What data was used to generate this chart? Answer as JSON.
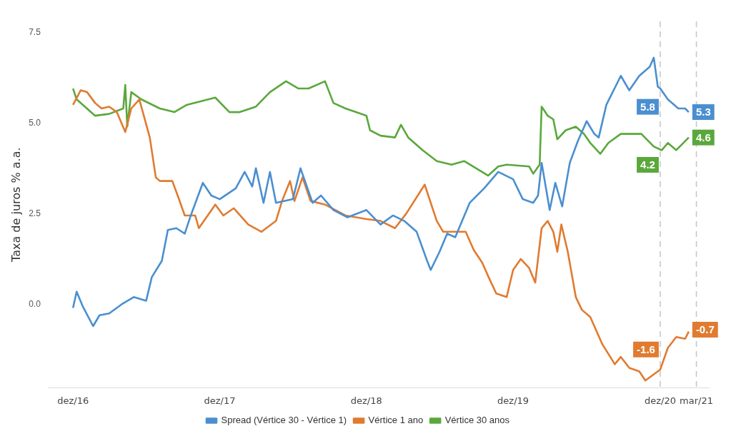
{
  "chart_data": {
    "type": "line",
    "ylabel": "Taxa de juros % a.a.",
    "legend": "bottom",
    "grid": false,
    "marker": "none",
    "line_style": "solid",
    "xlim": [
      "2016-10-01",
      "2021-04-01"
    ],
    "xticks": [
      {
        "value": "2016-12-01",
        "label": "dez/16"
      },
      {
        "value": "2017-12-01",
        "label": "dez/17"
      },
      {
        "value": "2018-12-01",
        "label": "dez/18"
      },
      {
        "value": "2019-12-01",
        "label": "dez/19"
      },
      {
        "value": "2020-12-01",
        "label": "dez/20"
      },
      {
        "value": "2021-03-01",
        "label": "mar/21"
      }
    ],
    "ylim": [
      -2.3,
      7.8
    ],
    "yticks": [
      {
        "value": 0,
        "label": "0.0"
      },
      {
        "value": 2.5,
        "label": "2.5"
      },
      {
        "value": 5,
        "label": "5.0"
      },
      {
        "value": 7.5,
        "label": "7.5"
      }
    ],
    "ref_lines": [
      {
        "axis": "x",
        "value": "2020-12-01",
        "color": "#c8c8c8",
        "line_style": "dashed"
      },
      {
        "axis": "x",
        "value": "2021-03-01",
        "color": "#c8c8c8",
        "line_style": "dashed"
      }
    ],
    "annotations": [
      {
        "text": "5.8",
        "x": "2020-12-01",
        "y": 5.8
      },
      {
        "text": "5.3",
        "x": "2021-02-10",
        "y": 5.3
      },
      {
        "text": "4.2",
        "x": "2020-12-01",
        "y": 4.2
      },
      {
        "text": "4.6",
        "x": "2021-02-10",
        "y": 4.6
      },
      {
        "text": "-1.6",
        "x": "2020-12-01",
        "y": -1.6
      },
      {
        "text": "-0.7",
        "x": "2021-02-10",
        "y": -0.7
      }
    ],
    "series": [
      {
        "name": "Spread (Vértice 30 - Vértice 1)",
        "color": "#4a8fd0",
        "x": [
          "2016-12-01",
          "2016-12-10",
          "2016-12-25",
          "2017-01-20",
          "2017-02-05",
          "2017-03-01",
          "2017-04-01",
          "2017-05-01",
          "2017-06-01",
          "2017-06-15",
          "2017-07-10",
          "2017-07-25",
          "2017-08-15",
          "2017-09-05",
          "2017-09-20",
          "2017-10-20",
          "2017-11-10",
          "2017-12-01",
          "2018-01-10",
          "2018-02-01",
          "2018-02-20",
          "2018-03-01",
          "2018-03-20",
          "2018-04-05",
          "2018-04-20",
          "2018-06-01",
          "2018-06-20",
          "2018-07-20",
          "2018-08-10",
          "2018-09-10",
          "2018-10-15",
          "2018-12-01",
          "2019-01-05",
          "2019-02-05",
          "2019-03-05",
          "2019-04-05",
          "2019-05-01",
          "2019-05-10",
          "2019-06-01",
          "2019-06-20",
          "2019-07-10",
          "2019-08-15",
          "2019-09-20",
          "2019-10-25",
          "2019-12-01",
          "2019-12-25",
          "2020-01-20",
          "2020-02-01",
          "2020-02-10",
          "2020-03-01",
          "2020-03-15",
          "2020-04-01",
          "2020-04-20",
          "2020-05-10",
          "2020-06-01",
          "2020-06-20",
          "2020-07-01",
          "2020-07-20",
          "2020-08-25",
          "2020-09-15",
          "2020-10-10",
          "2020-11-05",
          "2020-11-15",
          "2020-11-25",
          "2020-12-01",
          "2020-12-20",
          "2021-01-15",
          "2021-02-01",
          "2021-02-10"
        ],
        "values": [
          -0.1,
          0.35,
          -0.05,
          -0.6,
          -0.3,
          -0.25,
          0.0,
          0.2,
          0.1,
          0.75,
          1.2,
          2.05,
          2.1,
          1.95,
          2.45,
          3.35,
          3.0,
          2.9,
          3.2,
          3.65,
          3.25,
          3.75,
          2.8,
          3.65,
          2.8,
          2.9,
          3.75,
          2.8,
          3.0,
          2.6,
          2.4,
          2.6,
          2.2,
          2.45,
          2.3,
          2.0,
          1.2,
          0.95,
          1.45,
          1.95,
          1.85,
          2.8,
          3.2,
          3.65,
          3.45,
          2.9,
          2.8,
          3.0,
          3.9,
          2.6,
          3.35,
          2.7,
          3.9,
          4.5,
          5.05,
          4.7,
          4.6,
          5.5,
          6.3,
          5.9,
          6.3,
          6.55,
          6.8,
          6.0,
          5.95,
          5.65,
          5.4,
          5.4,
          5.3
        ]
      },
      {
        "name": "Vértice 1 ano",
        "color": "#e07b30",
        "x": [
          "2016-12-01",
          "2016-12-20",
          "2017-01-05",
          "2017-01-25",
          "2017-02-10",
          "2017-03-01",
          "2017-03-20",
          "2017-04-10",
          "2017-04-25",
          "2017-05-15",
          "2017-06-10",
          "2017-06-25",
          "2017-07-05",
          "2017-08-05",
          "2017-08-20",
          "2017-09-05",
          "2017-10-01",
          "2017-10-10",
          "2017-11-20",
          "2017-12-10",
          "2018-01-05",
          "2018-02-10",
          "2018-03-15",
          "2018-04-20",
          "2018-05-05",
          "2018-05-25",
          "2018-06-05",
          "2018-06-25",
          "2018-07-15",
          "2018-08-20",
          "2018-10-10",
          "2018-12-01",
          "2019-01-05",
          "2019-02-10",
          "2019-03-10",
          "2019-04-25",
          "2019-05-25",
          "2019-06-10",
          "2019-08-05",
          "2019-08-25",
          "2019-09-15",
          "2019-10-01",
          "2019-10-20",
          "2019-11-15",
          "2019-12-01",
          "2019-12-20",
          "2020-01-10",
          "2020-01-25",
          "2020-02-10",
          "2020-02-25",
          "2020-03-10",
          "2020-03-20",
          "2020-03-30",
          "2020-04-15",
          "2020-05-05",
          "2020-05-20",
          "2020-06-10",
          "2020-07-10",
          "2020-08-10",
          "2020-08-25",
          "2020-09-15",
          "2020-10-10",
          "2020-10-25",
          "2020-12-01",
          "2020-12-20",
          "2021-01-10",
          "2021-02-01",
          "2021-02-10"
        ],
        "values": [
          5.5,
          5.9,
          5.85,
          5.55,
          5.4,
          5.45,
          5.3,
          4.75,
          5.4,
          5.65,
          4.6,
          3.5,
          3.4,
          3.4,
          2.95,
          2.45,
          2.45,
          2.1,
          2.75,
          2.45,
          2.65,
          2.2,
          2.0,
          2.3,
          2.85,
          3.4,
          2.85,
          3.5,
          2.85,
          2.75,
          2.45,
          2.35,
          2.3,
          2.1,
          2.5,
          3.3,
          2.3,
          2.0,
          2.0,
          1.5,
          1.15,
          0.75,
          0.3,
          0.2,
          0.95,
          1.25,
          1.0,
          0.6,
          2.1,
          2.3,
          2.0,
          1.45,
          2.2,
          1.45,
          0.2,
          -0.15,
          -0.35,
          -1.1,
          -1.65,
          -1.45,
          -1.75,
          -1.85,
          -2.1,
          -1.8,
          -1.2,
          -0.9,
          -0.95,
          -0.75
        ]
      },
      {
        "name": "Vértice 30 anos",
        "color": "#5aa83c",
        "x": [
          "2016-12-01",
          "2016-12-10",
          "2017-01-25",
          "2017-03-01",
          "2017-04-05",
          "2017-04-10",
          "2017-04-15",
          "2017-04-25",
          "2017-05-20",
          "2017-07-05",
          "2017-08-10",
          "2017-09-10",
          "2017-11-20",
          "2017-12-25",
          "2018-01-20",
          "2018-03-01",
          "2018-04-05",
          "2018-05-15",
          "2018-06-15",
          "2018-07-10",
          "2018-08-20",
          "2018-09-10",
          "2018-10-10",
          "2018-12-01",
          "2018-12-10",
          "2019-01-05",
          "2019-02-10",
          "2019-02-25",
          "2019-03-15",
          "2019-04-20",
          "2019-05-25",
          "2019-07-01",
          "2019-08-01",
          "2019-09-30",
          "2019-10-25",
          "2019-11-15",
          "2020-01-10",
          "2020-01-20",
          "2020-02-05",
          "2020-02-10",
          "2020-02-25",
          "2020-03-10",
          "2020-03-20",
          "2020-04-10",
          "2020-05-05",
          "2020-05-25",
          "2020-06-10",
          "2020-07-05",
          "2020-07-25",
          "2020-08-25",
          "2020-10-15",
          "2020-11-15",
          "2020-12-05",
          "2020-12-20",
          "2021-01-10",
          "2021-02-10"
        ],
        "values": [
          5.95,
          5.65,
          5.2,
          5.25,
          5.4,
          6.05,
          4.9,
          5.85,
          5.65,
          5.4,
          5.3,
          5.5,
          5.7,
          5.3,
          5.3,
          5.45,
          5.85,
          6.15,
          5.95,
          5.95,
          6.15,
          5.55,
          5.4,
          5.2,
          4.8,
          4.65,
          4.6,
          4.95,
          4.6,
          4.25,
          3.95,
          3.85,
          3.95,
          3.55,
          3.8,
          3.85,
          3.8,
          3.6,
          3.85,
          5.45,
          5.2,
          5.1,
          4.55,
          4.8,
          4.9,
          4.7,
          4.45,
          4.15,
          4.45,
          4.7,
          4.7,
          4.35,
          4.25,
          4.45,
          4.25,
          4.6
        ]
      }
    ]
  }
}
